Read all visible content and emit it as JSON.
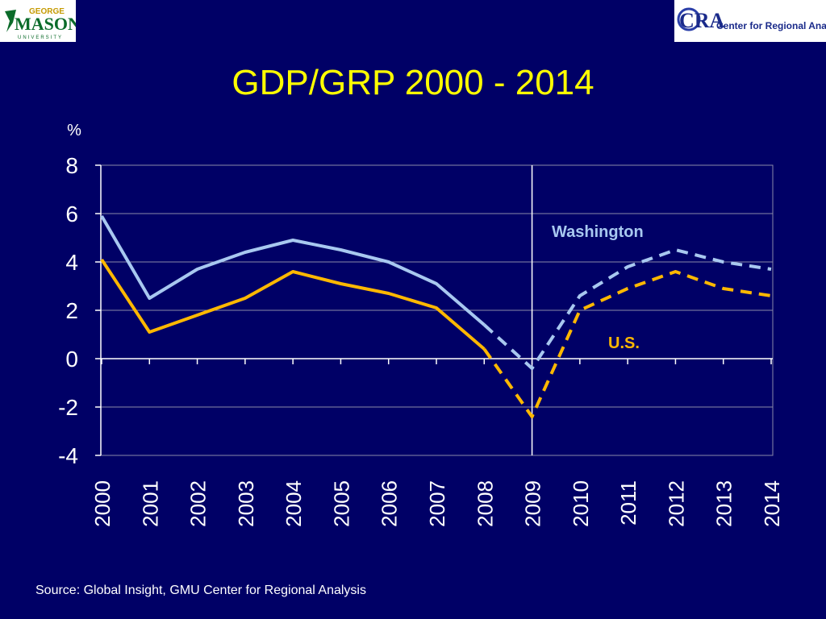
{
  "logos": {
    "left": {
      "line1": "GEORGE",
      "line2": "MASON",
      "line3": "UNIVERSITY"
    },
    "right": {
      "mark": "CRA",
      "text": "Center for Regional Analysis"
    }
  },
  "slide": {
    "title": "GDP/GRP 2000 - 2014",
    "source": "Source: Global Insight, GMU Center for Regional Analysis"
  },
  "colors": {
    "background": "#000066",
    "title": "#ffff00",
    "washington": "#a8c8f0",
    "us": "#ffb800",
    "axis": "#ffffff",
    "grid": "#8a8aa8"
  },
  "chart_data": {
    "type": "line",
    "title": "GDP/GRP 2000 - 2014",
    "ylabel": "%",
    "xlabel": "",
    "ylim": [
      -4,
      8
    ],
    "yticks": [
      "8",
      "6",
      "4",
      "2",
      "0",
      "-2",
      "-4"
    ],
    "ytick_values": [
      8,
      6,
      4,
      2,
      0,
      -2,
      -4
    ],
    "categories": [
      "2000",
      "2001",
      "2002",
      "2003",
      "2004",
      "2005",
      "2006",
      "2007",
      "2008",
      "2009",
      "2010",
      "2011",
      "2012",
      "2013",
      "2014"
    ],
    "grid": true,
    "vertical_marker": "2009",
    "forecast_start": "2008",
    "series": [
      {
        "name": "Washington",
        "color": "#a8c8f0",
        "values": [
          5.9,
          2.5,
          3.7,
          4.4,
          4.9,
          4.5,
          4.0,
          3.1,
          1.4,
          -0.4,
          2.6,
          3.8,
          4.5,
          4.0,
          3.7
        ]
      },
      {
        "name": "U.S.",
        "color": "#ffb800",
        "values": [
          4.1,
          1.1,
          1.8,
          2.5,
          3.6,
          3.1,
          2.7,
          2.1,
          0.4,
          -2.4,
          2.0,
          2.9,
          3.6,
          2.9,
          2.6
        ]
      }
    ]
  }
}
